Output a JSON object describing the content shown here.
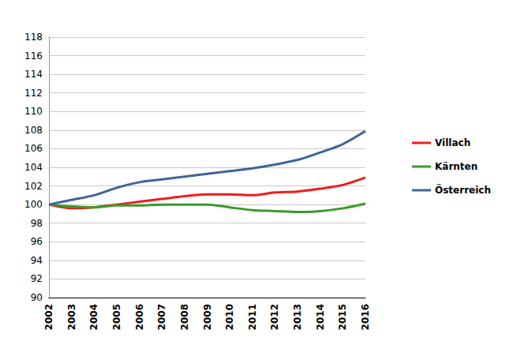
{
  "chart_data": {
    "type": "line",
    "categories": [
      "2002",
      "2003",
      "2004",
      "2005",
      "2006",
      "2007",
      "2008",
      "2009",
      "2010",
      "2011",
      "2012",
      "2013",
      "2014",
      "2015",
      "2016"
    ],
    "series": [
      {
        "name": "Villach",
        "color": "#ee1c1c",
        "values": [
          100,
          99.6,
          99.7,
          100.0,
          100.3,
          100.6,
          100.9,
          101.1,
          101.1,
          101.0,
          101.3,
          101.4,
          101.7,
          102.1,
          102.9
        ]
      },
      {
        "name": "Kärnten",
        "color": "#3a9a2a",
        "values": [
          100,
          99.8,
          99.7,
          99.9,
          99.9,
          100.0,
          100.0,
          100.0,
          99.7,
          99.4,
          99.3,
          99.2,
          99.3,
          99.6,
          100.1
        ]
      },
      {
        "name": "Österreich",
        "color": "#3f6496",
        "values": [
          100,
          100.5,
          101.0,
          101.8,
          102.4,
          102.7,
          103.0,
          103.3,
          103.6,
          103.9,
          104.3,
          104.8,
          105.6,
          106.5,
          107.9
        ]
      }
    ],
    "ylim": [
      90,
      118
    ],
    "yticks": [
      90,
      92,
      94,
      96,
      98,
      100,
      102,
      104,
      106,
      108,
      110,
      112,
      114,
      116,
      118
    ],
    "grid": true,
    "legend": "right"
  }
}
